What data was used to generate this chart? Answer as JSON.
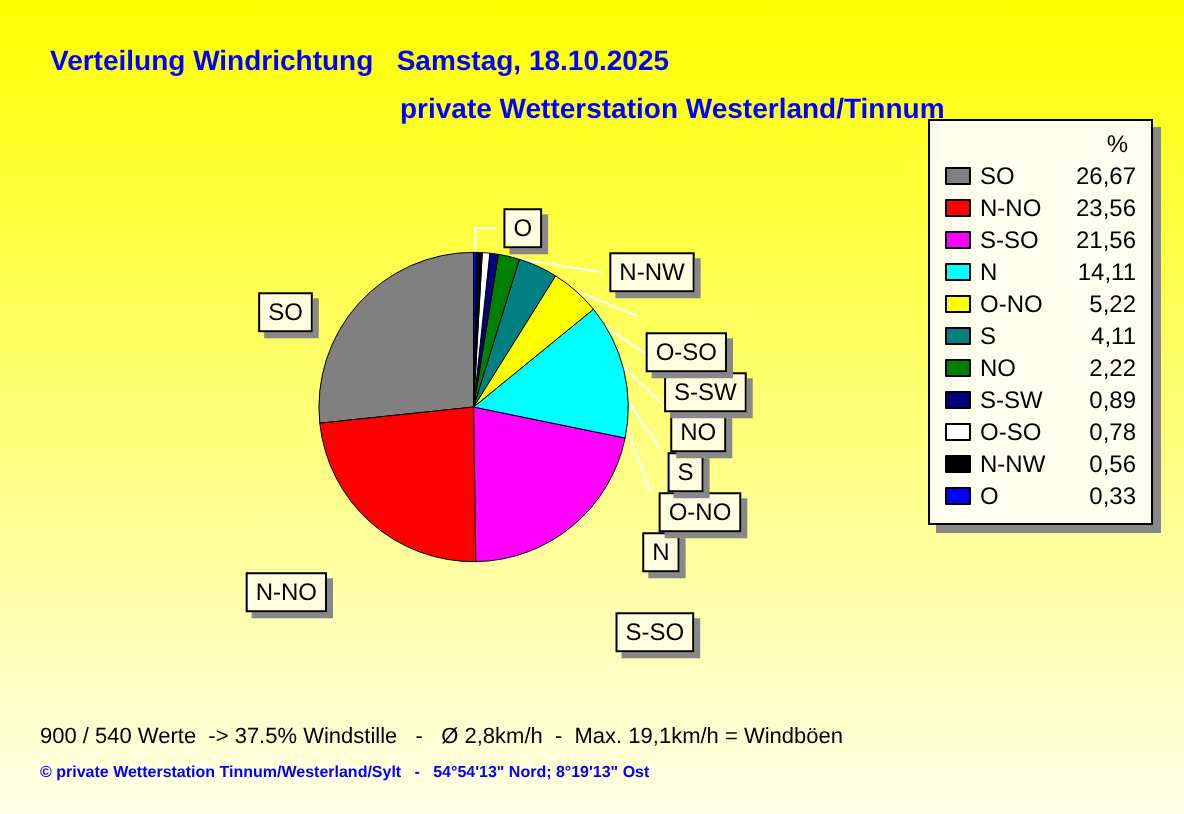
{
  "chart_data": {
    "type": "pie",
    "title": "Verteilung Windrichtung   Samstag, 18.10.2025",
    "subtitle": "private Wetterstation Westerland/Tinnum",
    "legend_title": "%",
    "categories": [
      "SO",
      "N-NO",
      "S-SO",
      "N",
      "O-NO",
      "S",
      "NO",
      "S-SW",
      "O-SO",
      "N-NW",
      "O"
    ],
    "values": [
      26.67,
      23.56,
      21.56,
      14.11,
      5.22,
      4.11,
      2.22,
      0.89,
      0.78,
      0.56,
      0.33
    ],
    "value_labels": [
      "26,67",
      "23,56",
      "21,56",
      "14,11",
      "5,22",
      "4,11",
      "2,22",
      "0,89",
      "0,78",
      "0,56",
      "0,33"
    ],
    "colors": [
      "#808080",
      "#ff0000",
      "#ff00ff",
      "#00ffff",
      "#ffff00",
      "#008080",
      "#008000",
      "#000080",
      "#ffffff",
      "#000000",
      "#0000ff"
    ],
    "legend": "right",
    "annotations": [
      "900 / 540 Werte  -> 37.5% Windstille   -   Ø 2,8km/h  -  Max. 19,1km/h = Windböen",
      "© private Wetterstation Tinnum/Westerland/Sylt   -   54°54'13\" Nord; 8°19'13\" Ost"
    ]
  }
}
